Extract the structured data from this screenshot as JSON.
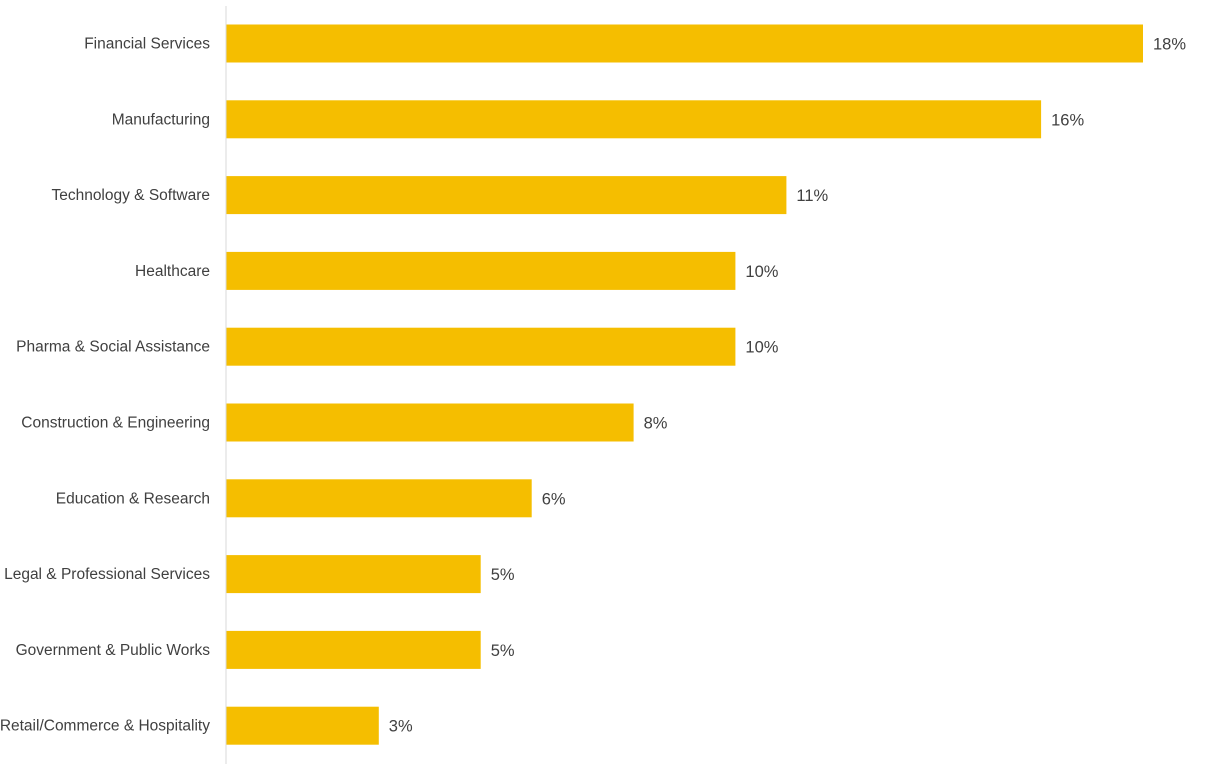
{
  "chart_data": {
    "type": "bar",
    "orientation": "horizontal",
    "categories": [
      "Financial Services",
      "Manufacturing",
      "Technology & Software",
      "Healthcare",
      "Pharma & Social Assistance",
      "Construction & Engineering",
      "Education & Research",
      "Legal & Professional Services",
      "Government & Public Works",
      "Retail/Commerce & Hospitality"
    ],
    "values": [
      18,
      16,
      11,
      10,
      10,
      8,
      6,
      5,
      5,
      3
    ],
    "data_labels": [
      "18%",
      "16%",
      "11%",
      "10%",
      "10%",
      "8%",
      "6%",
      "5%",
      "5%",
      "3%"
    ],
    "value_unit": "%",
    "xlim": [
      0,
      20
    ],
    "bar_color": "#F5BE00",
    "axis_color": "#D9D9D9",
    "text_color": "#404040",
    "grid": false,
    "legend": "none"
  }
}
